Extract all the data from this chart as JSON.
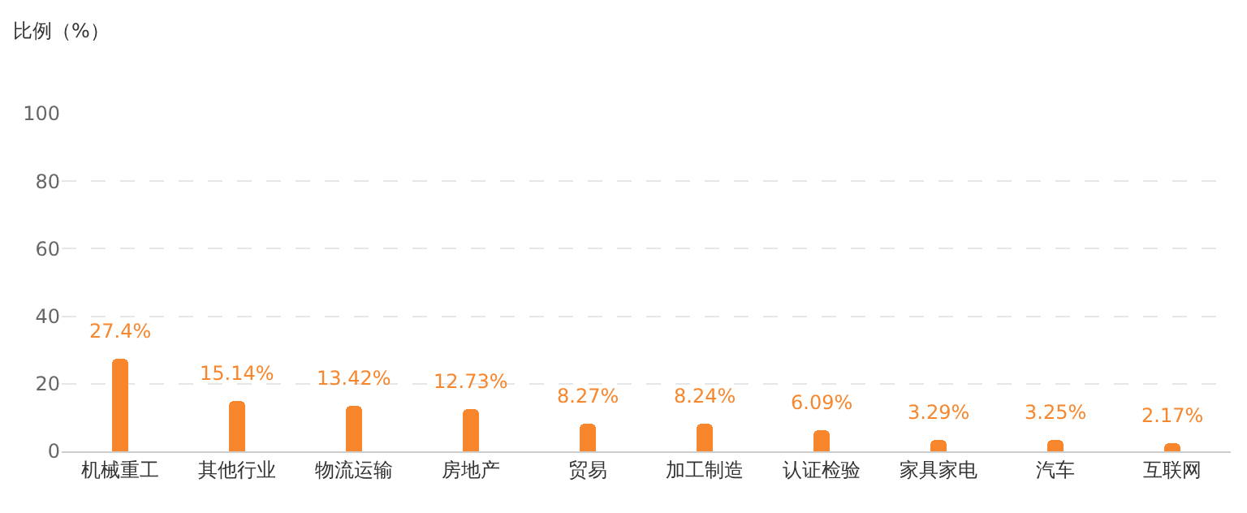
{
  "chart_data": {
    "type": "bar",
    "ylabel": "比例（%）",
    "categories": [
      "机械重工",
      "其他行业",
      "物流运输",
      "房地产",
      "贸易",
      "加工制造",
      "认证检验",
      "家具家电",
      "汽车",
      "互联网"
    ],
    "values": [
      27.4,
      15.14,
      13.42,
      12.73,
      8.27,
      8.24,
      6.09,
      3.29,
      3.25,
      2.17
    ],
    "value_labels": [
      "27.4%",
      "15.14%",
      "13.42%",
      "12.73%",
      "8.27%",
      "8.24%",
      "6.09%",
      "3.29%",
      "3.25%",
      "2.17%"
    ],
    "color": "#f7862c",
    "ylim": [
      0,
      100
    ],
    "yticks": [
      0,
      20,
      40,
      60,
      80,
      100
    ],
    "grid": "y",
    "legend": false
  }
}
